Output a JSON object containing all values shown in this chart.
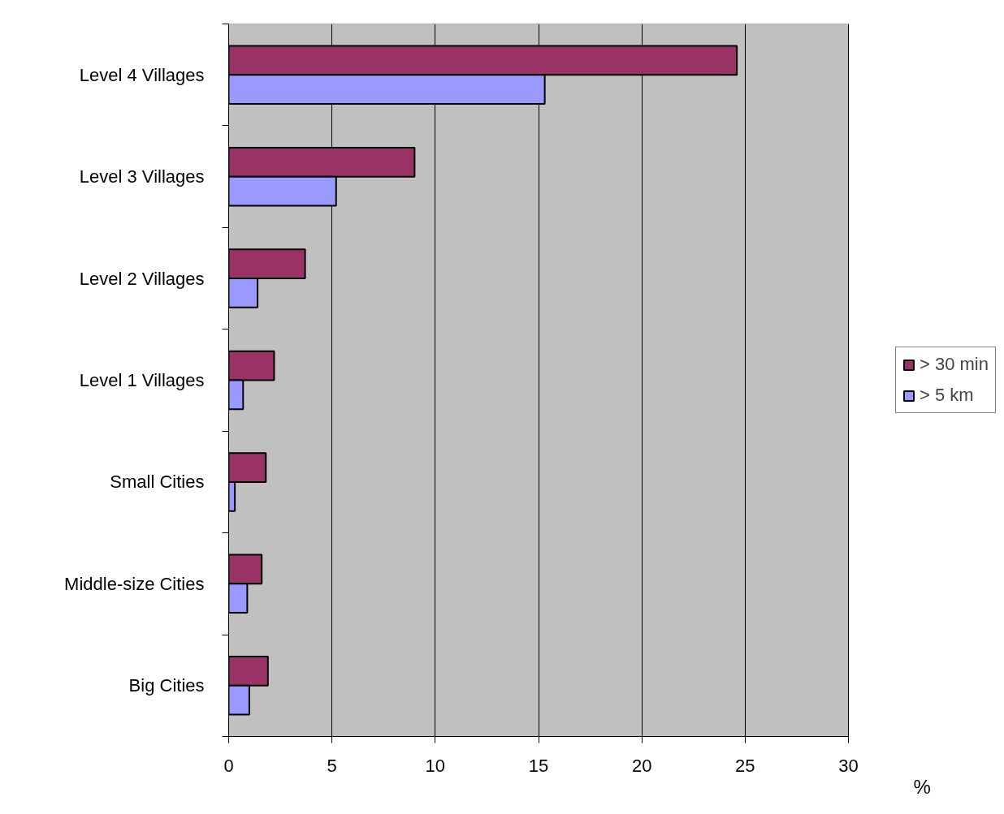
{
  "chart_data": {
    "type": "bar",
    "orientation": "horizontal",
    "categories": [
      "Level 4 Villages",
      "Level 3 Villages",
      "Level 2 Villages",
      "Level 1 Villages",
      "Small Cities",
      "Middle-size Cities",
      "Big Cities"
    ],
    "series": [
      {
        "name": "> 30 min",
        "color": "#993366",
        "values": [
          24.6,
          9.0,
          3.7,
          2.2,
          1.8,
          1.6,
          1.9
        ]
      },
      {
        "name": "> 5 km",
        "color": "#9999ff",
        "values": [
          15.3,
          5.2,
          1.4,
          0.7,
          0.3,
          0.9,
          1.0
        ]
      }
    ],
    "xlabel": "%",
    "xlim": [
      0,
      30
    ],
    "xticks": [
      0,
      5,
      10,
      15,
      20,
      25,
      30
    ],
    "grid": "x",
    "legend": "right"
  }
}
